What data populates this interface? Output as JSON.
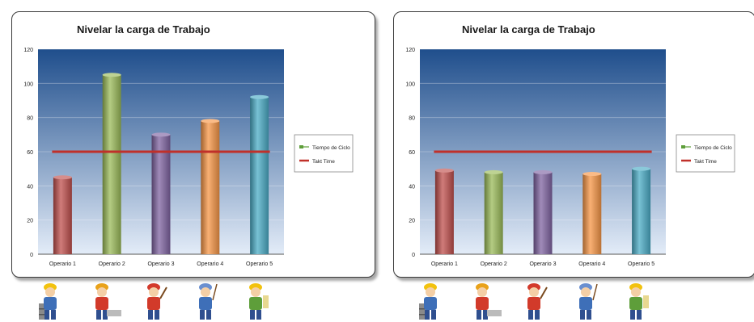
{
  "chart_data": [
    {
      "type": "bar",
      "title": "Nivelar la carga de Trabajo",
      "categories": [
        "Operario 1",
        "Operario 2",
        "Operario 3",
        "Operario 4",
        "Operario 5"
      ],
      "series": [
        {
          "name": "Tiempo de Ciclo",
          "values": [
            45,
            105,
            70,
            78,
            92
          ]
        }
      ],
      "reference_line": {
        "name": "Takt Time",
        "value": 60
      },
      "ylim": [
        0,
        120
      ],
      "yticks": [
        0,
        20,
        40,
        60,
        80,
        100,
        120
      ],
      "grid": true,
      "legend": "right"
    },
    {
      "type": "bar",
      "title": "Nivelar la carga de Trabajo",
      "categories": [
        "Operario 1",
        "Operario 2",
        "Operario 3",
        "Operario 4",
        "Operario 5"
      ],
      "series": [
        {
          "name": "Tiempo de Ciclo",
          "values": [
            49,
            48,
            48,
            47,
            50
          ]
        }
      ],
      "reference_line": {
        "name": "Takt Time",
        "value": 60
      },
      "ylim": [
        0,
        120
      ],
      "yticks": [
        0,
        20,
        40,
        60,
        80,
        100,
        120
      ],
      "grid": true,
      "legend": "right"
    }
  ],
  "colors": {
    "bars": [
      "#c0504d",
      "#9bbb59",
      "#8064a2",
      "#f79646",
      "#4bacc6"
    ],
    "takt_line": "#c0302a",
    "legend_marker": "#5e9e3a",
    "plot_top": "#1f4e8c",
    "plot_bottom": "#e3ecf8"
  },
  "workers": {
    "icons": [
      "worker-with-boxes-icon",
      "worker-welding-icon",
      "worker-hammer-icon",
      "worker-cleaning-icon",
      "worker-checklist-icon"
    ]
  }
}
